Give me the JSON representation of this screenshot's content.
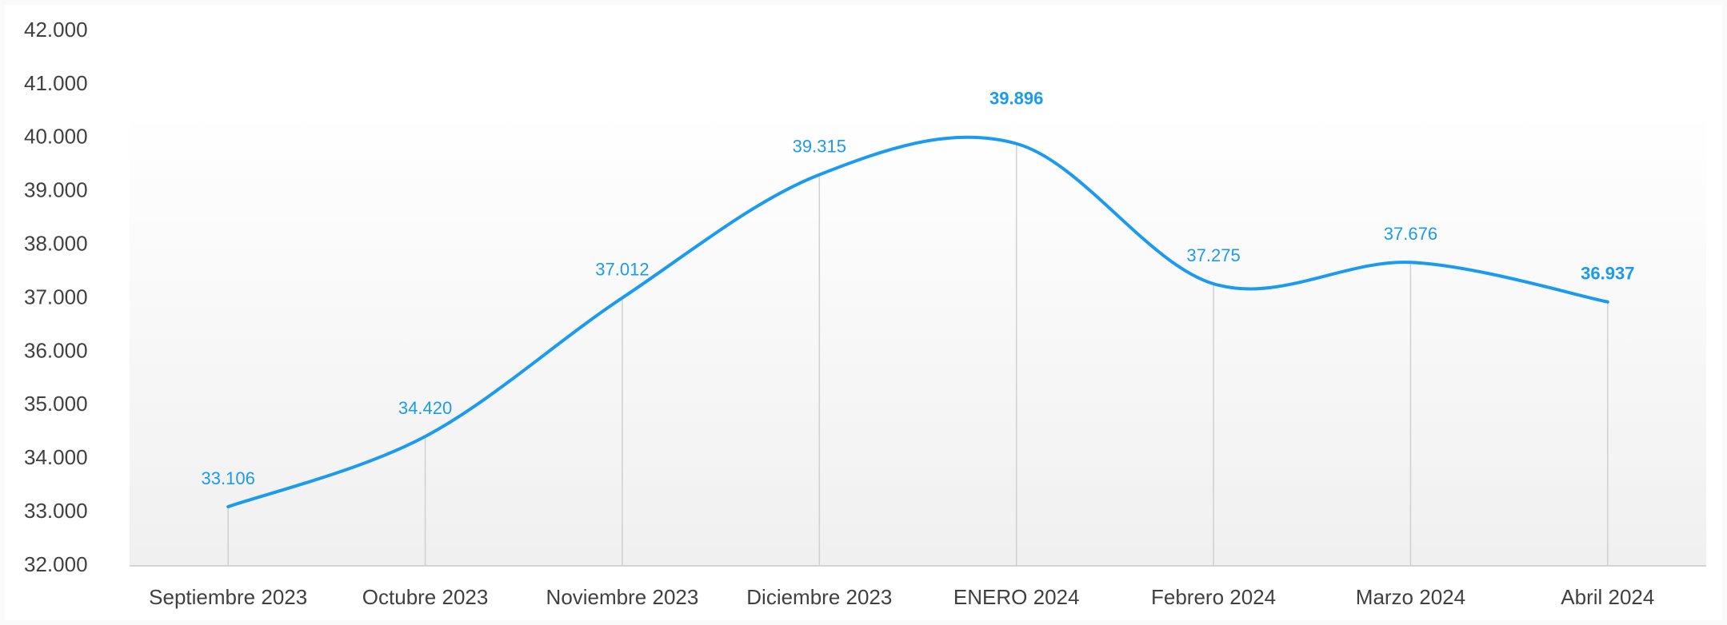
{
  "chart_data": {
    "type": "line",
    "categories": [
      "Septiembre 2023",
      "Octubre 2023",
      "Noviembre 2023",
      "Diciembre 2023",
      "ENERO 2024",
      "Febrero 2024",
      "Marzo 2024",
      "Abril 2024"
    ],
    "series": [
      {
        "name": "Total",
        "color": "#1a9bef",
        "values": [
          33106,
          34420,
          37012,
          39315,
          39896,
          37275,
          37676,
          36937
        ],
        "value_labels": [
          "33.106",
          "34.420",
          "37.012",
          "39.315",
          "39.896",
          "37.275",
          "37.676",
          "36.937"
        ]
      }
    ],
    "bold_value_labels": [
      4,
      7
    ],
    "ylim": [
      32000,
      42000
    ],
    "yticks": [
      {
        "value": 32000,
        "label": "32.000"
      },
      {
        "value": 33000,
        "label": "33.000"
      },
      {
        "value": 34000,
        "label": "34.000"
      },
      {
        "value": 35000,
        "label": "35.000"
      },
      {
        "value": 36000,
        "label": "36.000"
      },
      {
        "value": 37000,
        "label": "37.000"
      },
      {
        "value": 38000,
        "label": "38.000"
      },
      {
        "value": 39000,
        "label": "39.000"
      },
      {
        "value": 40000,
        "label": "40.000"
      },
      {
        "value": 41000,
        "label": "41.000"
      },
      {
        "value": 42000,
        "label": "42.000"
      }
    ],
    "grid": false,
    "smooth": true
  }
}
